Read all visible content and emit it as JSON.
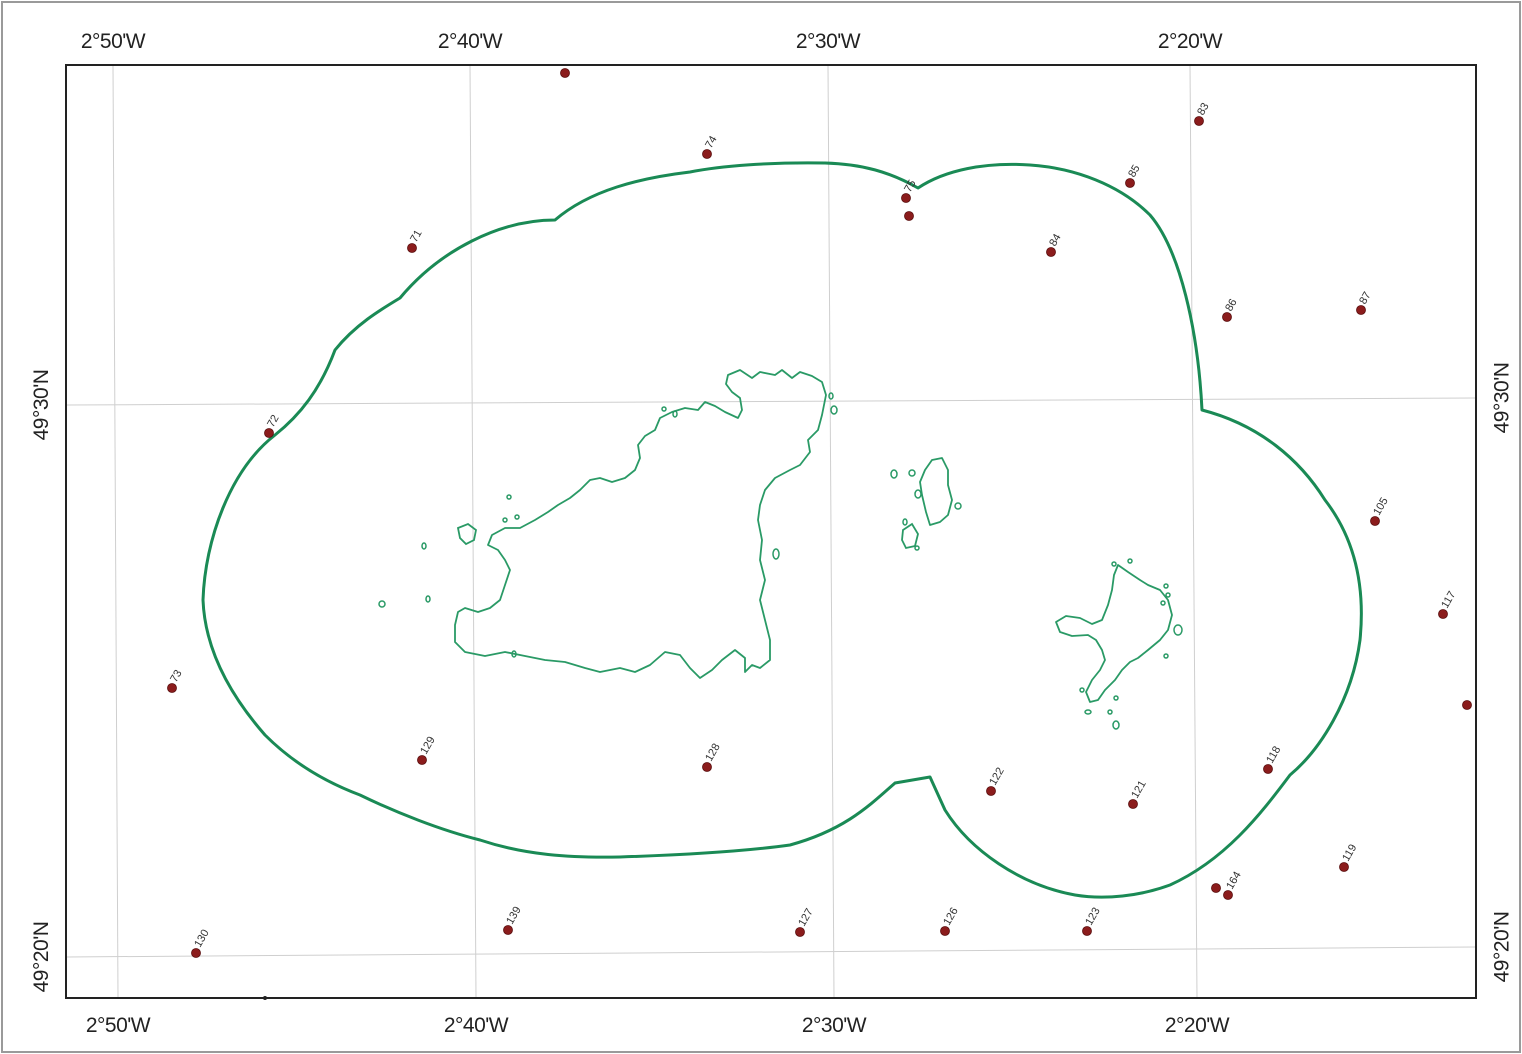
{
  "map": {
    "colors": {
      "boundary": "#1a8a55",
      "coastline": "#2a9a66",
      "station": "#8b1c1c",
      "grid": "#cfcfcf",
      "frame": "#222222",
      "outer_border": "#9a9a9a"
    },
    "graticule": {
      "top_labels": [
        "2°50'W",
        "2°40'W",
        "2°30'W",
        "2°20'W"
      ],
      "bottom_labels": [
        "2°50'W",
        "2°40'W",
        "2°30'W",
        "2°20'W"
      ],
      "left_labels": [
        "49°30'N",
        "49°20'N"
      ],
      "right_labels": [
        "49°30'N",
        "49°20'N"
      ]
    },
    "stations": [
      {
        "id": "s-unl-1",
        "label": ""
      },
      {
        "id": "s74",
        "label": "74"
      },
      {
        "id": "s83",
        "label": "83"
      },
      {
        "id": "s85",
        "label": "85"
      },
      {
        "id": "s75",
        "label": "75"
      },
      {
        "id": "s-unl-2",
        "label": ""
      },
      {
        "id": "s71",
        "label": "71"
      },
      {
        "id": "s84",
        "label": "84"
      },
      {
        "id": "s86",
        "label": "86"
      },
      {
        "id": "s87",
        "label": "87"
      },
      {
        "id": "s72",
        "label": "72"
      },
      {
        "id": "s105",
        "label": "105"
      },
      {
        "id": "s117",
        "label": "117"
      },
      {
        "id": "s73",
        "label": "73"
      },
      {
        "id": "s-unl-3",
        "label": ""
      },
      {
        "id": "s129",
        "label": "129"
      },
      {
        "id": "s128",
        "label": "128"
      },
      {
        "id": "s122",
        "label": "122"
      },
      {
        "id": "s118",
        "label": "118"
      },
      {
        "id": "s121",
        "label": "121"
      },
      {
        "id": "s119",
        "label": "119"
      },
      {
        "id": "s-unl-4",
        "label": ""
      },
      {
        "id": "s164",
        "label": "164"
      },
      {
        "id": "s130",
        "label": "130"
      },
      {
        "id": "s139",
        "label": "139"
      },
      {
        "id": "s127",
        "label": "127"
      },
      {
        "id": "s126",
        "label": "126"
      },
      {
        "id": "s123",
        "label": "123"
      }
    ]
  }
}
